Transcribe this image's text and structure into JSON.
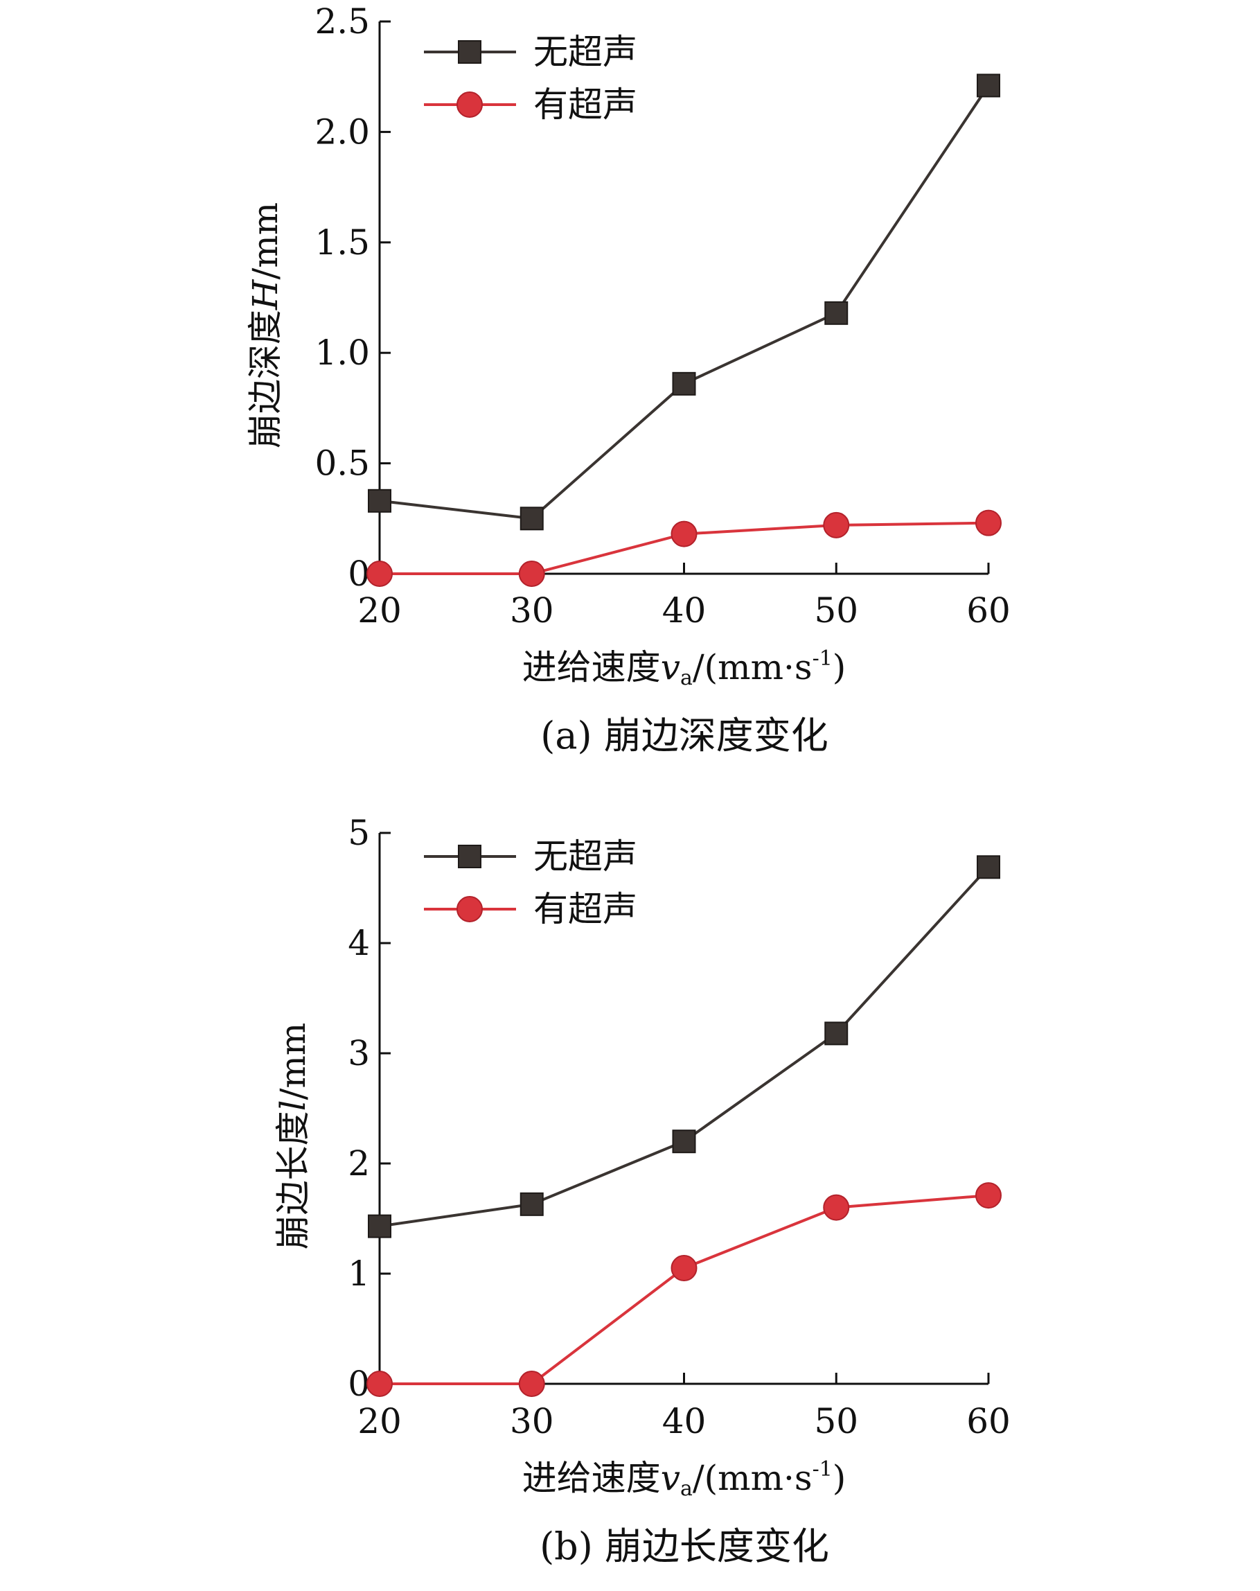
{
  "chart_data": [
    {
      "type": "line",
      "caption": "(a) 崩边深度变化",
      "xlabel_prefix": "进给速度",
      "xlabel_var": "v",
      "xlabel_sub": "a",
      "xlabel_unit": "/(mm·s",
      "xlabel_sup": "-1",
      "xlabel_close": ")",
      "ylabel_prefix": "崩边深度",
      "ylabel_var": "H",
      "ylabel_unit": "/mm",
      "x": [
        20,
        30,
        40,
        50,
        60
      ],
      "xlim": [
        20,
        60
      ],
      "ylim": [
        0,
        2.5
      ],
      "xticks": [
        "20",
        "30",
        "40",
        "50",
        "60"
      ],
      "yticks": [
        {
          "value": 0,
          "label": "0"
        },
        {
          "value": 0.5,
          "label": "0.5"
        },
        {
          "value": 1.0,
          "label": "1.0"
        },
        {
          "value": 1.5,
          "label": "1.5"
        },
        {
          "value": 2.0,
          "label": "2.0"
        },
        {
          "value": 2.5,
          "label": "2.5"
        }
      ],
      "legend_position": "top-left",
      "series": [
        {
          "name": "无超声",
          "marker": "square",
          "color": "#3a3431",
          "values": [
            0.33,
            0.25,
            0.86,
            1.18,
            2.21
          ]
        },
        {
          "name": "有超声",
          "marker": "circle",
          "color": "#d9343c",
          "values": [
            0,
            0,
            0.18,
            0.22,
            0.23
          ]
        }
      ]
    },
    {
      "type": "line",
      "caption": "(b) 崩边长度变化",
      "xlabel_prefix": "进给速度",
      "xlabel_var": "v",
      "xlabel_sub": "a",
      "xlabel_unit": "/(mm·s",
      "xlabel_sup": "-1",
      "xlabel_close": ")",
      "ylabel_prefix": "崩边长度",
      "ylabel_var": "l",
      "ylabel_unit": "/mm",
      "x": [
        20,
        30,
        40,
        50,
        60
      ],
      "xlim": [
        20,
        60
      ],
      "ylim": [
        0,
        5
      ],
      "xticks": [
        "20",
        "30",
        "40",
        "50",
        "60"
      ],
      "yticks": [
        {
          "value": 0,
          "label": "0"
        },
        {
          "value": 1,
          "label": "1"
        },
        {
          "value": 2,
          "label": "2"
        },
        {
          "value": 3,
          "label": "3"
        },
        {
          "value": 4,
          "label": "4"
        },
        {
          "value": 5,
          "label": "5"
        }
      ],
      "legend_position": "top-left",
      "series": [
        {
          "name": "无超声",
          "marker": "square",
          "color": "#3a3431",
          "values": [
            1.43,
            1.63,
            2.2,
            3.18,
            4.69
          ]
        },
        {
          "name": "有超声",
          "marker": "circle",
          "color": "#d9343c",
          "values": [
            0,
            0,
            1.05,
            1.6,
            1.71
          ]
        }
      ]
    }
  ]
}
